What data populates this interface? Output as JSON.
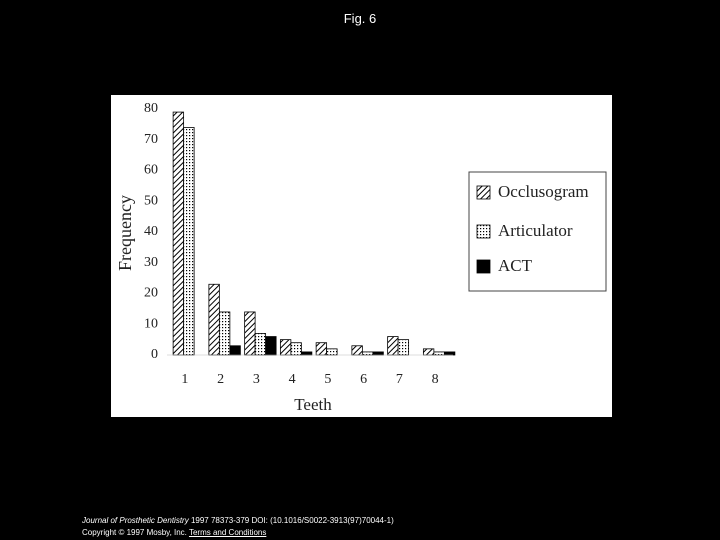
{
  "title": "Fig. 6",
  "chart_data": {
    "type": "bar",
    "x_label": "Teeth",
    "y_label": "Frequency",
    "categories": [
      "1",
      "2",
      "3",
      "4",
      "5",
      "6",
      "7",
      "8"
    ],
    "series": [
      {
        "name": "Occlusogram",
        "color": "#000000",
        "pattern": "hatch",
        "values": [
          79,
          23,
          14,
          5,
          4,
          3,
          6,
          2
        ]
      },
      {
        "name": "Articulator",
        "color": "#000000",
        "pattern": "dots",
        "values": [
          74,
          14,
          7,
          4,
          2,
          1,
          5,
          1
        ]
      },
      {
        "name": "ACT",
        "color": "#000000",
        "pattern": "solid",
        "values": [
          0,
          3,
          6,
          1,
          0,
          1,
          0,
          1
        ]
      }
    ],
    "ylim": [
      0,
      80
    ],
    "yticks": [
      0,
      10,
      20,
      30,
      40,
      50,
      60,
      70,
      80
    ],
    "grid": false,
    "legend": "right"
  },
  "footer": {
    "journal": "Journal of Prosthetic Dentistry",
    "reference": "1997 78373-379 DOI: (10.1016/S0022-3913(97)70044-1)",
    "copyright": "Copyright © 1997 Mosby, Inc.",
    "link": "Terms and Conditions"
  }
}
